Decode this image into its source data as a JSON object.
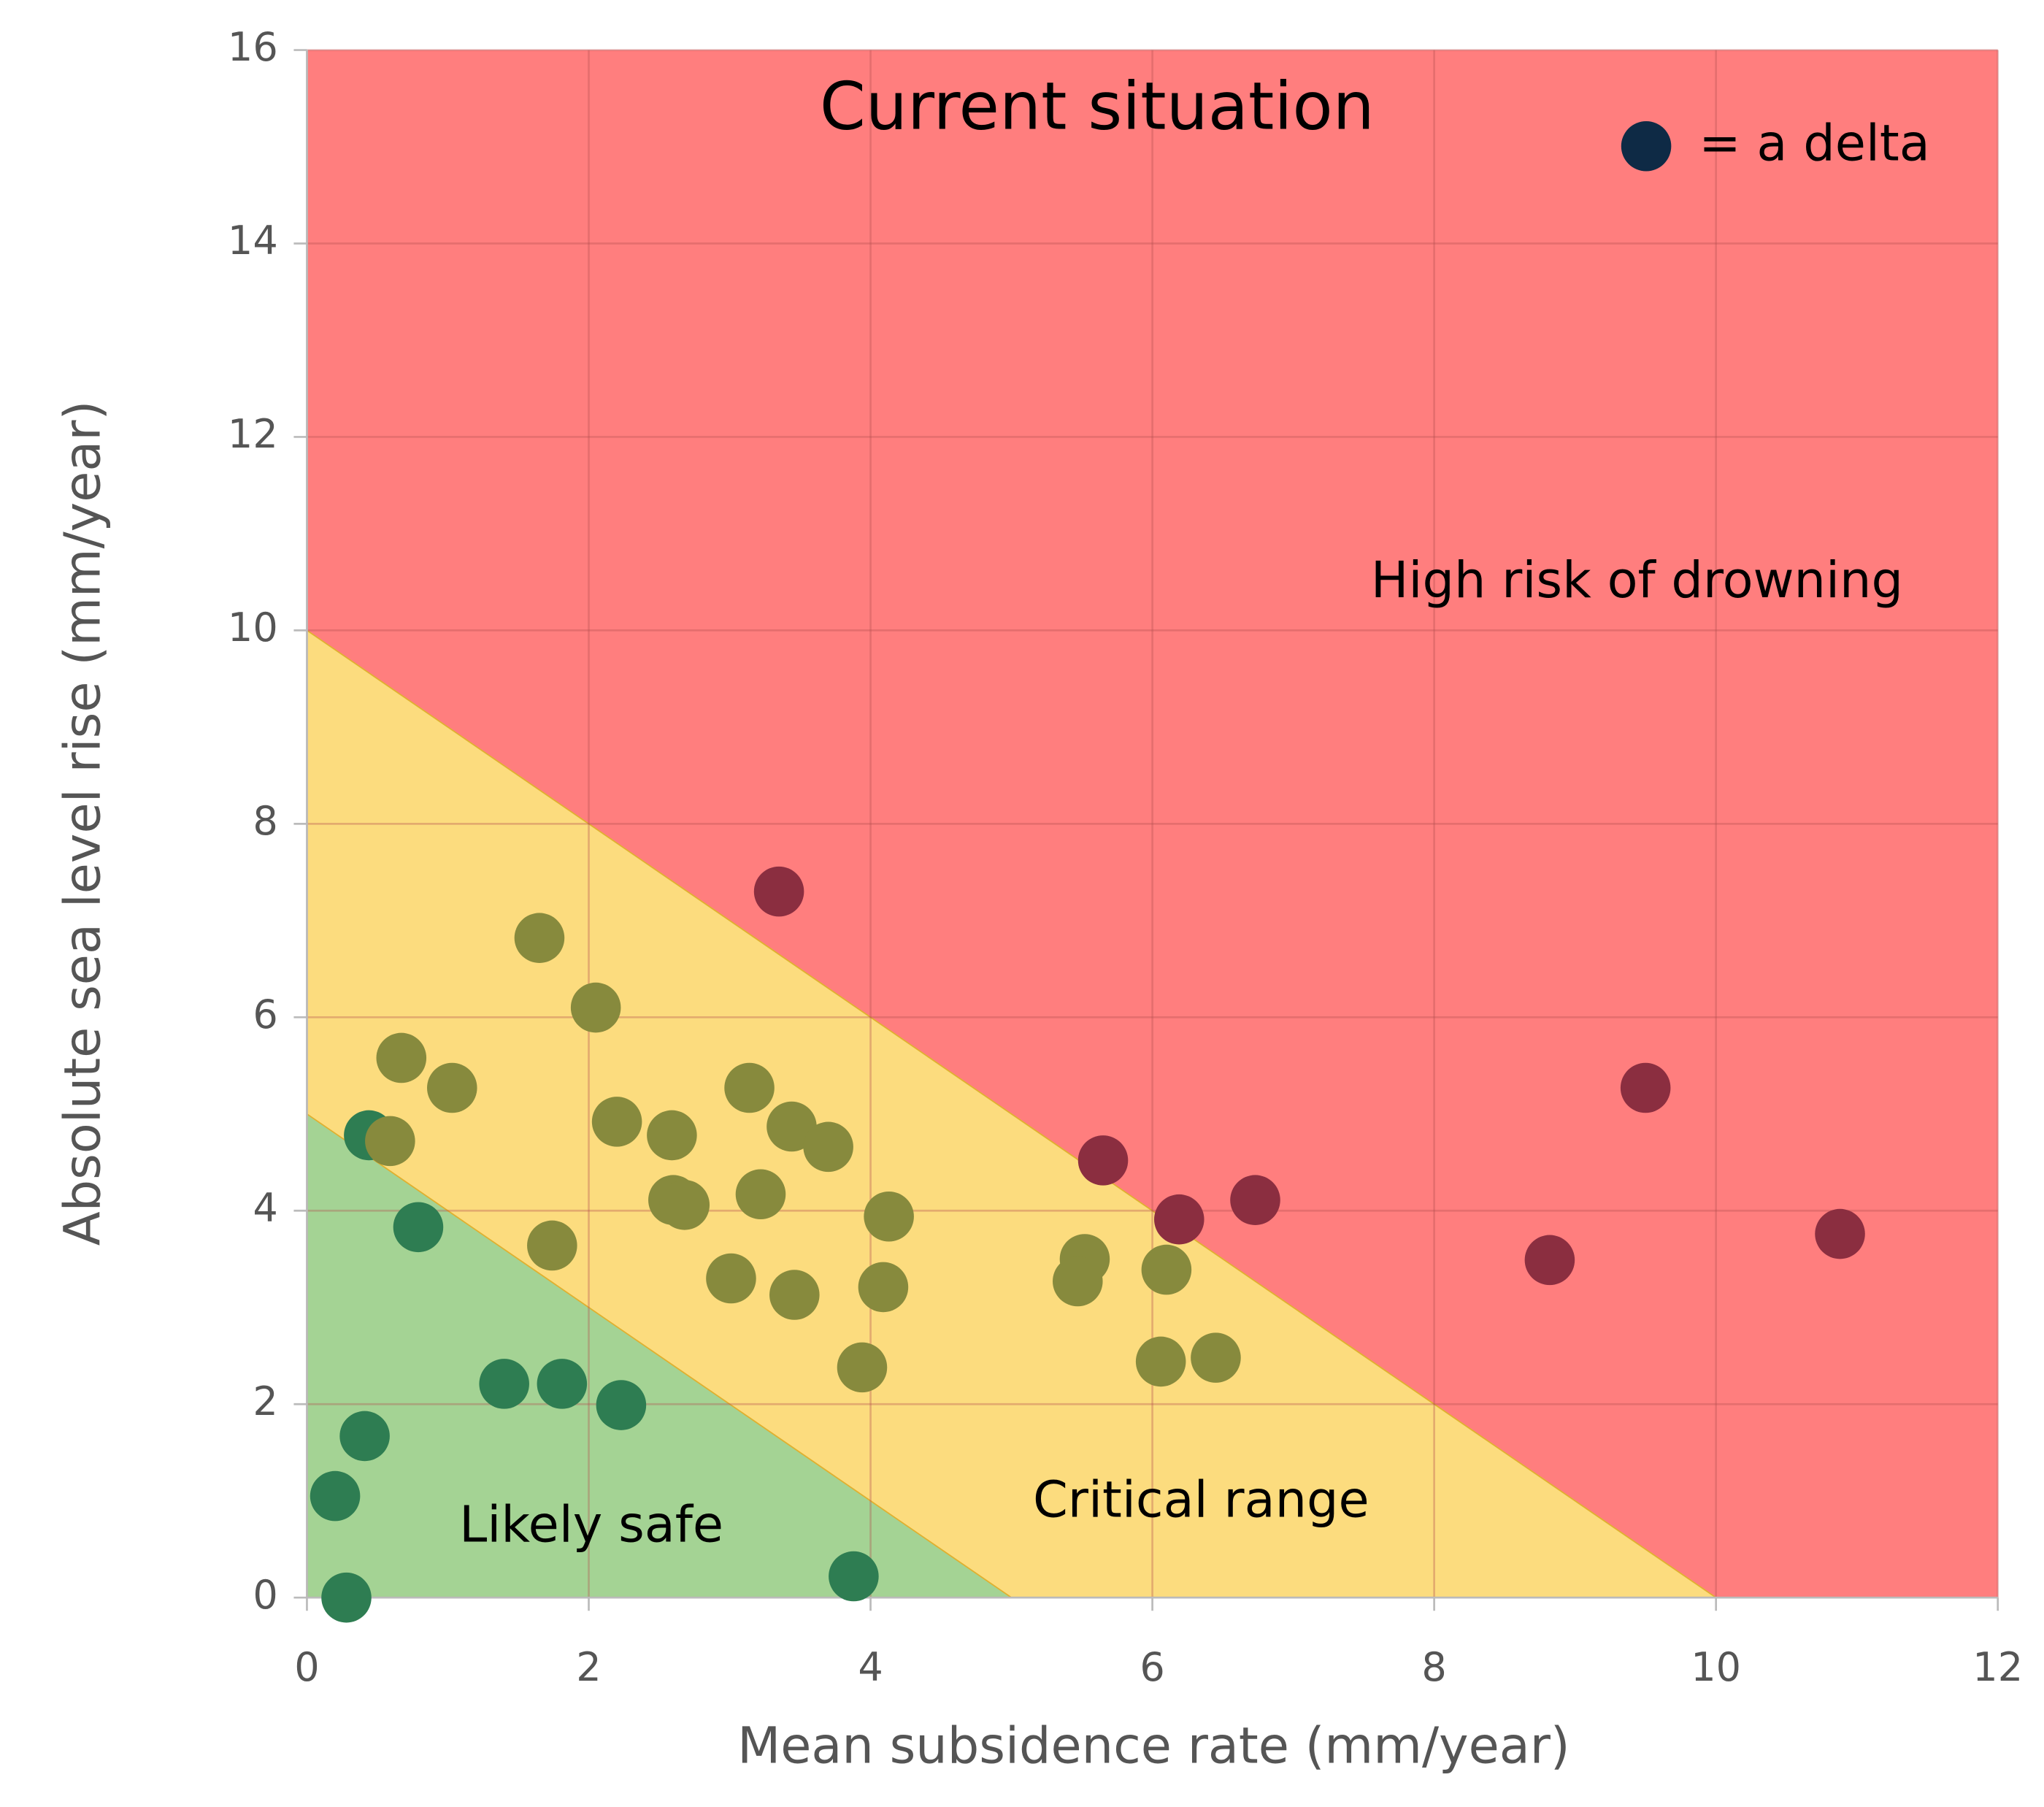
{
  "chart_data": {
    "type": "scatter",
    "title": "Current situation",
    "x_label": "Mean subsidence rate (mm/year)",
    "y_label": "Absolute sea level rise (mm/year)",
    "xlim": [
      0,
      12
    ],
    "ylim": [
      0,
      16
    ],
    "xticks": [
      0,
      2,
      4,
      6,
      8,
      10,
      12
    ],
    "yticks": [
      0,
      2,
      4,
      6,
      8,
      10,
      12,
      14,
      16
    ],
    "grid": true,
    "zones": [
      {
        "label": "Likely safe",
        "color": "#a4d394",
        "boundary": 5
      },
      {
        "label": "Critical range",
        "color": "#fcdc7e",
        "boundary": 10
      },
      {
        "label": "High risk of drowning",
        "color": "#ff7e7e"
      }
    ],
    "legend": {
      "label": "= a delta",
      "color": "#0e2a45",
      "position": "upper right"
    },
    "series": [
      {
        "color": "#2e7d52",
        "x": [
          0.44,
          0.79,
          1.4,
          1.81,
          2.23,
          0.41,
          0.2,
          0.28,
          3.88
        ],
        "y": [
          4.78,
          3.83,
          2.21,
          2.21,
          1.99,
          1.67,
          1.05,
          0,
          0.22
        ]
      },
      {
        "color": "#878a3d",
        "x": [
          1.65,
          2.05,
          0.67,
          1.03,
          0.59,
          2.2,
          2.59,
          3.14,
          3.44,
          3.7,
          3.22,
          2.6,
          2.68,
          4.13,
          1.74,
          3.01,
          3.46,
          4.09,
          3.94,
          5.52,
          5.47,
          6.1,
          6.06,
          6.45
        ],
        "y": [
          6.82,
          6.1,
          5.58,
          5.27,
          4.72,
          4.92,
          4.78,
          5.27,
          4.87,
          4.66,
          4.17,
          4.11,
          4.06,
          3.94,
          3.64,
          3.3,
          3.13,
          3.21,
          2.38,
          3.5,
          3.27,
          3.39,
          2.44,
          2.48
        ]
      },
      {
        "color": "#8b2e40",
        "x": [
          3.35,
          5.65,
          6.19,
          6.73,
          8.82,
          9.5,
          10.88
        ],
        "y": [
          7.3,
          4.52,
          3.91,
          4.11,
          3.49,
          5.27,
          3.76
        ]
      }
    ]
  }
}
